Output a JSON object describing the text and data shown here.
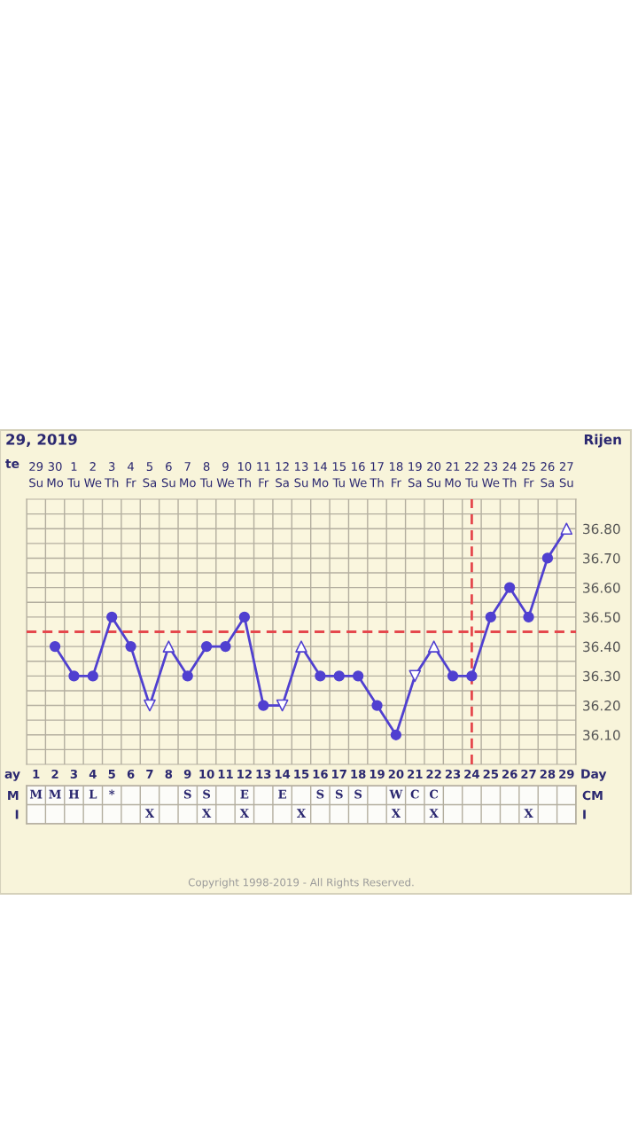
{
  "chart_data": [
    {
      "type": "line",
      "title": "29, 2019",
      "subtitle": "Rijen",
      "xlabel": "te",
      "categories": [
        "29\nSu",
        "30\nMo",
        "1\nTu",
        "2\nWe",
        "3\nTh",
        "4\nFr",
        "5\nSa",
        "6\nSu",
        "7\nMo",
        "8\nTu",
        "9\nWe",
        "10\nTh",
        "11\nFr",
        "12\nSa",
        "13\nSu",
        "14\nMo",
        "15\nTu",
        "16\nWe",
        "17\nTh",
        "18\nFr",
        "19\nSa",
        "20\nSu",
        "21\nMo",
        "22\nTu",
        "23\nWe",
        "24\nTh",
        "25\nFr",
        "26\nSa",
        "27\nSu"
      ],
      "series": [
        {
          "type": "line",
          "color": "#5040d0",
          "marker": "none",
          "line_style": "solid",
          "values": [
            null,
            36.4,
            36.3,
            36.3,
            36.5,
            36.4,
            36.2,
            36.4,
            36.3,
            36.4,
            36.4,
            36.5,
            36.2,
            36.2,
            36.4,
            36.3,
            36.3,
            36.3,
            36.2,
            36.1,
            36.3,
            36.4,
            36.3,
            36.3,
            36.5,
            36.6,
            36.5,
            36.7,
            36.8
          ]
        },
        {
          "type": "scatter",
          "color": "#5040d0",
          "marker": "circle",
          "values": [
            null,
            36.4,
            36.3,
            36.3,
            36.5,
            36.4,
            null,
            null,
            36.3,
            36.4,
            36.4,
            36.5,
            36.2,
            null,
            null,
            36.3,
            36.3,
            36.3,
            36.2,
            36.1,
            null,
            null,
            36.3,
            36.3,
            36.5,
            36.6,
            36.5,
            36.7,
            null
          ]
        },
        {
          "type": "scatter",
          "color": "#5040d0",
          "marker": "triangle",
          "values": [
            null,
            null,
            null,
            null,
            null,
            null,
            null,
            36.4,
            null,
            null,
            null,
            null,
            null,
            null,
            36.4,
            null,
            null,
            null,
            null,
            null,
            null,
            36.4,
            null,
            null,
            null,
            null,
            null,
            null,
            36.8
          ]
        },
        {
          "type": "scatter",
          "color": "#5040d0",
          "marker": "triangle_down",
          "values": [
            null,
            null,
            null,
            null,
            null,
            null,
            36.2,
            null,
            null,
            null,
            null,
            null,
            null,
            36.2,
            null,
            null,
            null,
            null,
            null,
            null,
            36.3,
            null,
            null,
            null,
            null,
            null,
            null,
            null,
            null
          ]
        }
      ],
      "ylim": [
        36.0,
        36.9
      ],
      "yticks": [
        {
          "value": 36.05,
          "label": null
        },
        {
          "value": 36.1,
          "label": "36.10"
        },
        {
          "value": 36.15,
          "label": null
        },
        {
          "value": 36.2,
          "label": "36.20"
        },
        {
          "value": 36.25,
          "label": null
        },
        {
          "value": 36.3,
          "label": "36.30"
        },
        {
          "value": 36.35,
          "label": null
        },
        {
          "value": 36.4,
          "label": "36.40"
        },
        {
          "value": 36.5,
          "label": "36.50"
        },
        {
          "value": 36.55,
          "label": null
        },
        {
          "value": 36.6,
          "label": "36.60"
        },
        {
          "value": 36.65,
          "label": null
        },
        {
          "value": 36.7,
          "label": "36.70"
        },
        {
          "value": 36.75,
          "label": null
        },
        {
          "value": 36.8,
          "label": "36.80"
        },
        {
          "value": 36.85,
          "label": null
        }
      ],
      "ref_lines": [
        {
          "axis": "y",
          "value": 36.45,
          "color": "#e5484d",
          "line_style": "dashed"
        },
        {
          "axis": "x",
          "value": "22\nTu",
          "color": "#e5484d",
          "line_style": "dashed"
        }
      ],
      "grid": true
    },
    {
      "type": "heatmap",
      "xlabel": "Day",
      "annotations": [
        "ay",
        "Copyright 1998-2019 - All Rights Reserved."
      ],
      "categories": [
        "1",
        "2",
        "3",
        "4",
        "5",
        "6",
        "7",
        "8",
        "9",
        "10",
        "11",
        "12",
        "13",
        "14",
        "15",
        "16",
        "17",
        "18",
        "19",
        "20",
        "21",
        "22",
        "23",
        "24",
        "25",
        "26",
        "27",
        "28",
        "29"
      ],
      "y_categories": [
        "M",
        "I"
      ],
      "y2_categories": [
        "CM",
        "I"
      ],
      "cells": [
        [
          null,
          null,
          null,
          null,
          null,
          null,
          null,
          null,
          null,
          null,
          null,
          null,
          null,
          null,
          null,
          null,
          null,
          null,
          null,
          null,
          null,
          null,
          null,
          null,
          null,
          null,
          null,
          null,
          null
        ],
        [
          null,
          null,
          null,
          null,
          null,
          null,
          null,
          null,
          null,
          null,
          null,
          null,
          null,
          null,
          null,
          null,
          null,
          null,
          null,
          null,
          null,
          null,
          null,
          null,
          null,
          null,
          null,
          null,
          null
        ]
      ],
      "cell_labels": [
        [
          "M",
          "M",
          "H",
          "L",
          "*",
          null,
          null,
          null,
          "S",
          "S",
          null,
          "E",
          null,
          "E",
          null,
          "S",
          "S",
          "S",
          null,
          "W",
          "C",
          "C",
          null,
          null,
          null,
          null,
          null,
          null,
          null
        ],
        [
          null,
          null,
          null,
          null,
          null,
          null,
          "X",
          null,
          null,
          "X",
          null,
          "X",
          null,
          null,
          "X",
          null,
          null,
          null,
          null,
          "X",
          null,
          "X",
          null,
          null,
          null,
          null,
          "X",
          null,
          null
        ]
      ]
    }
  ]
}
